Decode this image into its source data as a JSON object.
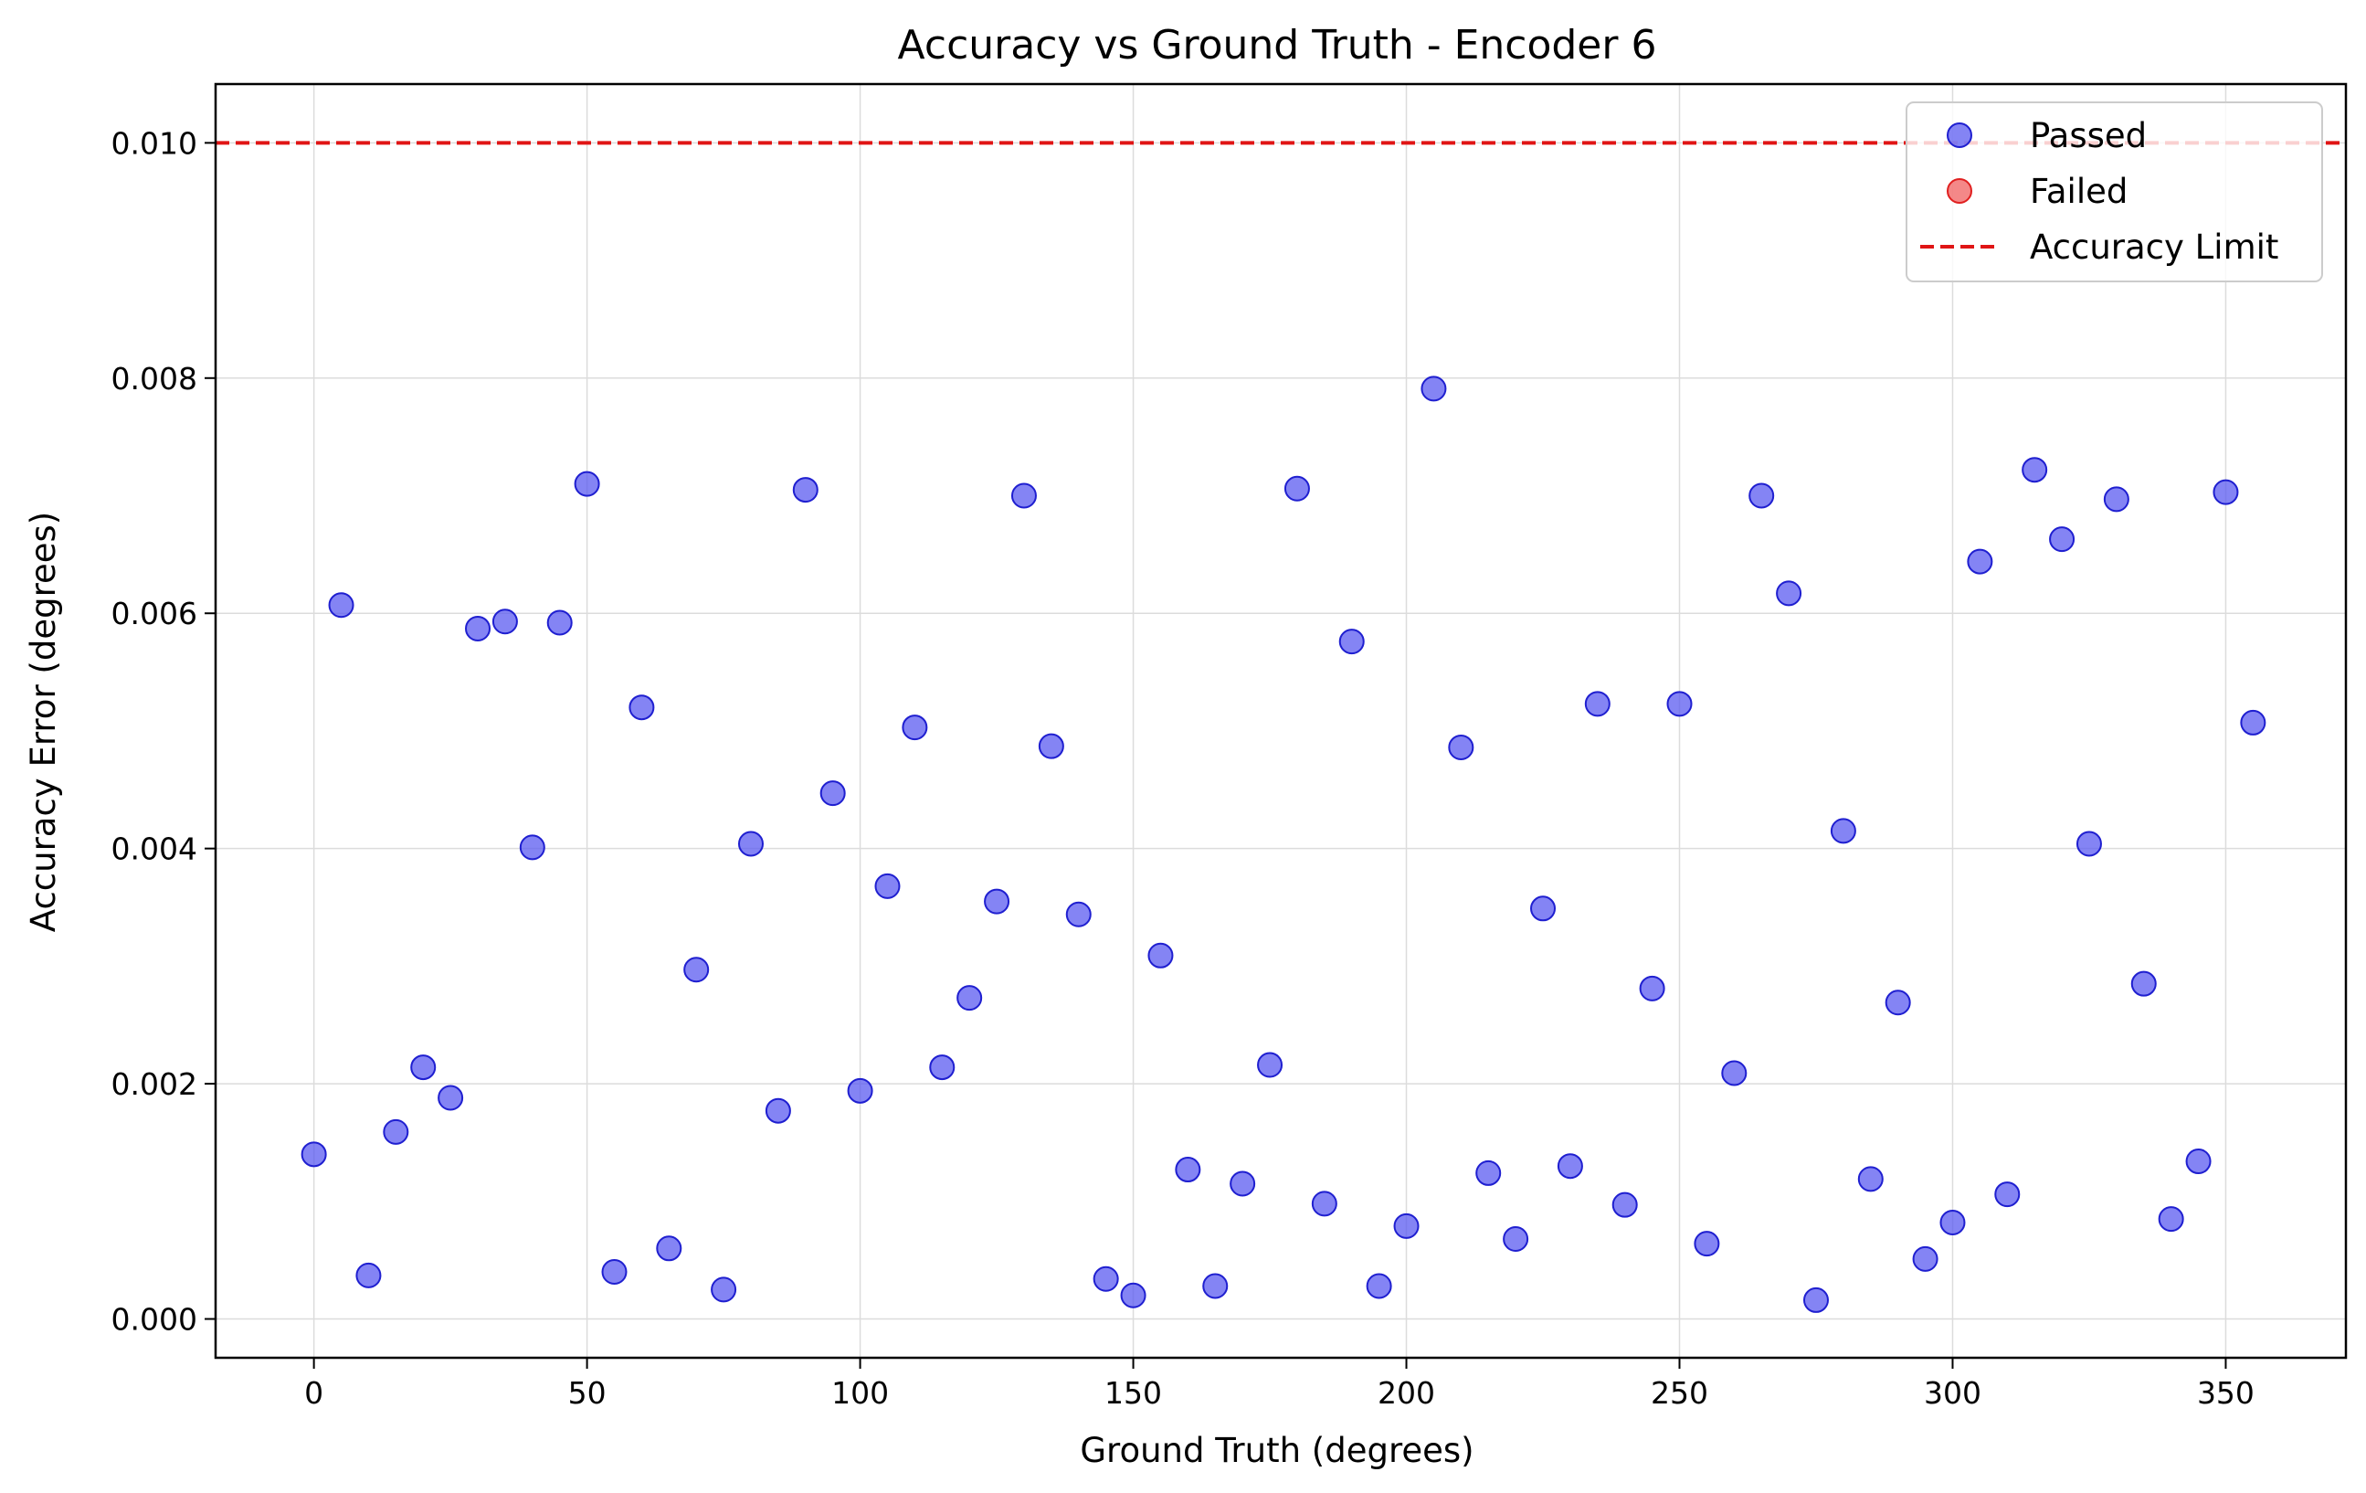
{
  "chart_data": {
    "type": "scatter",
    "title": "Accuracy vs Ground Truth - Encoder 6",
    "xlabel": "Ground Truth (degrees)",
    "ylabel": "Accuracy Error (degrees)",
    "xlim": [
      -18,
      372
    ],
    "ylim": [
      -0.00033,
      0.0105
    ],
    "xticks": [
      0,
      50,
      100,
      150,
      200,
      250,
      300,
      350
    ],
    "xtick_labels": [
      "0",
      "50",
      "100",
      "150",
      "200",
      "250",
      "300",
      "350"
    ],
    "yticks": [
      0.0,
      0.002,
      0.004,
      0.006,
      0.008,
      0.01
    ],
    "ytick_labels": [
      "0.000",
      "0.002",
      "0.004",
      "0.006",
      "0.008",
      "0.010"
    ],
    "grid": true,
    "legend_position": "top-right",
    "legend": [
      "Passed",
      "Failed",
      "Accuracy Limit"
    ],
    "colors": {
      "passed": "#5b5bf0",
      "passed_edge": "#1f1fd0",
      "failed": "#f06060",
      "failed_edge": "#e02020",
      "limit": "#e01515"
    },
    "accuracy_limit": 0.01,
    "series": [
      {
        "name": "Passed",
        "x": [
          0,
          5,
          10,
          15,
          20,
          25,
          30,
          35,
          40,
          45,
          50,
          55,
          60,
          65,
          70,
          75,
          80,
          85,
          90,
          95,
          100,
          105,
          110,
          115,
          120,
          125,
          130,
          135,
          140,
          145,
          150,
          155,
          160,
          165,
          170,
          175,
          180,
          185,
          190,
          195,
          200,
          205,
          210,
          215,
          220,
          225,
          230,
          235,
          240,
          245,
          250,
          255,
          260,
          265,
          270,
          275,
          280,
          285,
          290,
          295,
          300,
          305,
          310,
          315,
          320,
          325,
          330,
          335,
          340,
          345,
          350,
          355
        ],
        "y": [
          0.0014,
          0.00607,
          0.00037,
          0.00159,
          0.00214,
          0.00188,
          0.00587,
          0.00593,
          0.00401,
          0.00592,
          0.0071,
          0.0004,
          0.0052,
          0.0006,
          0.00297,
          0.00025,
          0.00404,
          0.00177,
          0.00705,
          0.00447,
          0.00194,
          0.00368,
          0.00503,
          0.00214,
          0.00273,
          0.00355,
          0.007,
          0.00487,
          0.00344,
          0.00034,
          0.0002,
          0.00309,
          0.00127,
          0.00028,
          0.00115,
          0.00216,
          0.00706,
          0.00098,
          0.00576,
          0.00028,
          0.00079,
          0.00791,
          0.00486,
          0.00124,
          0.00068,
          0.00349,
          0.0013,
          0.00523,
          0.00097,
          0.00281,
          0.00523,
          0.00064,
          0.00209,
          0.007,
          0.00617,
          0.00016,
          0.00415,
          0.00119,
          0.00269,
          0.00051,
          0.00082,
          0.00644,
          0.00106,
          0.00722,
          0.00663,
          0.00404,
          0.00697,
          0.00285,
          0.00085,
          0.00134,
          0.00703,
          0.00507
        ]
      },
      {
        "name": "Failed",
        "x": [],
        "y": []
      }
    ]
  }
}
